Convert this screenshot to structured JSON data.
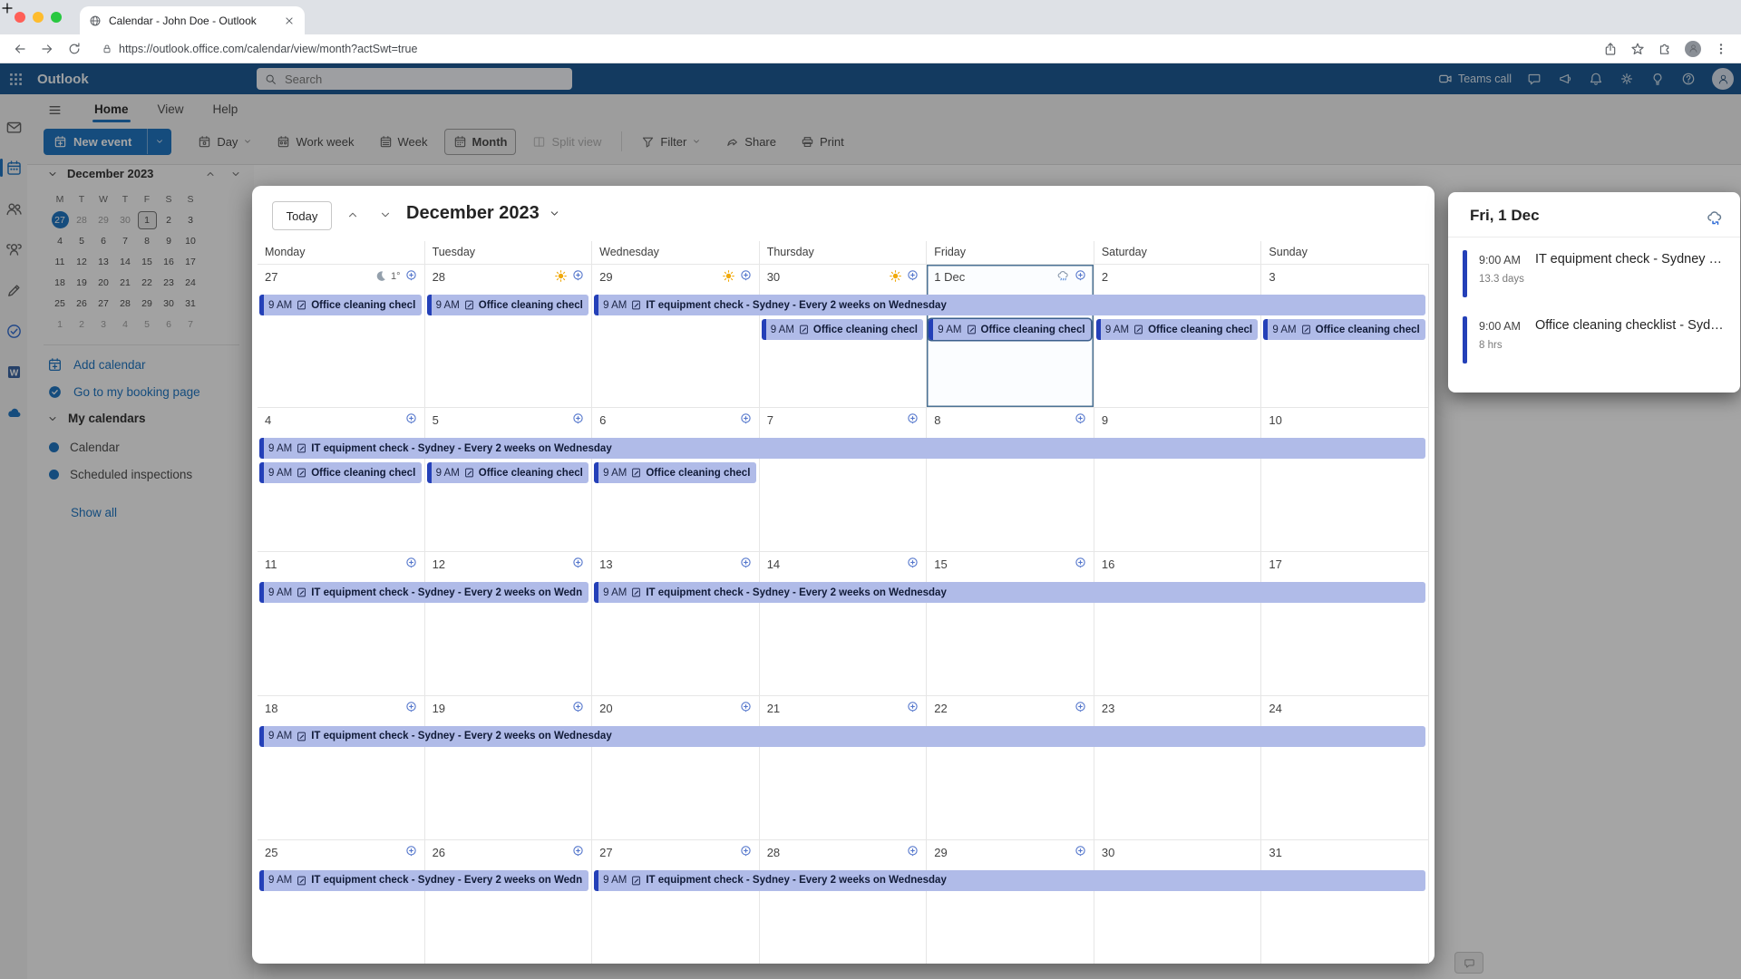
{
  "browser": {
    "tab_title": "Calendar - John Doe - Outlook",
    "url": "https://outlook.office.com/calendar/view/month?actSwt=true",
    "traffic_lights": [
      "#ff5f57",
      "#febc2e",
      "#28c840"
    ]
  },
  "suite_header": {
    "app_name": "Outlook",
    "search_placeholder": "Search",
    "teams_call_label": "Teams call",
    "right_icons": [
      "chat",
      "megaphone",
      "bell",
      "gear",
      "lightbulb",
      "question"
    ]
  },
  "app_rail": {
    "items": [
      {
        "icon": "mail",
        "color": "#5a5a5a",
        "active": false
      },
      {
        "icon": "calendar",
        "color": "#0f6cbd",
        "active": true
      },
      {
        "icon": "people",
        "color": "#5a5a5a",
        "active": false
      },
      {
        "icon": "groups",
        "color": "#5a5a5a",
        "active": false
      },
      {
        "icon": "pen",
        "color": "#5a5a5a",
        "active": false
      },
      {
        "icon": "todo",
        "color": "#2564cf",
        "active": false
      },
      {
        "icon": "word",
        "color": "#2b579a",
        "active": false
      },
      {
        "icon": "onedrive",
        "color": "#0f6cbd",
        "active": false
      }
    ]
  },
  "ribbon": {
    "tabs": [
      {
        "label": "Home",
        "active": true
      },
      {
        "label": "View",
        "active": false
      },
      {
        "label": "Help",
        "active": false
      }
    ],
    "toolbar": [
      {
        "label": "New event",
        "icon": "cal-plus",
        "type": "primary",
        "dropdown": true
      },
      {
        "label": "Day",
        "icon": "cal-day",
        "dropdown": true
      },
      {
        "label": "Work week",
        "icon": "cal-work"
      },
      {
        "label": "Week",
        "icon": "cal-week"
      },
      {
        "label": "Month",
        "icon": "cal-month",
        "selected": true
      },
      {
        "label": "Split view",
        "icon": "split",
        "disabled": true
      },
      {
        "label": "Filter",
        "icon": "funnel",
        "dropdown": true,
        "sep_before": true
      },
      {
        "label": "Share",
        "icon": "share2"
      },
      {
        "label": "Print",
        "icon": "printer"
      }
    ]
  },
  "sidebar": {
    "mini_calendar": {
      "title": "December 2023",
      "day_headers": [
        "M",
        "T",
        "W",
        "T",
        "F",
        "S",
        "S"
      ],
      "weeks": [
        [
          {
            "d": "27",
            "muted": true,
            "today": true
          },
          {
            "d": "28",
            "muted": true
          },
          {
            "d": "29",
            "muted": true
          },
          {
            "d": "30",
            "muted": true
          },
          {
            "d": "1",
            "selected": true
          },
          {
            "d": "2"
          },
          {
            "d": "3"
          }
        ],
        [
          {
            "d": "4"
          },
          {
            "d": "5"
          },
          {
            "d": "6"
          },
          {
            "d": "7"
          },
          {
            "d": "8"
          },
          {
            "d": "9"
          },
          {
            "d": "10"
          }
        ],
        [
          {
            "d": "11"
          },
          {
            "d": "12"
          },
          {
            "d": "13"
          },
          {
            "d": "14"
          },
          {
            "d": "15"
          },
          {
            "d": "16"
          },
          {
            "d": "17"
          }
        ],
        [
          {
            "d": "18"
          },
          {
            "d": "19"
          },
          {
            "d": "20"
          },
          {
            "d": "21"
          },
          {
            "d": "22"
          },
          {
            "d": "23"
          },
          {
            "d": "24"
          }
        ],
        [
          {
            "d": "25"
          },
          {
            "d": "26"
          },
          {
            "d": "27"
          },
          {
            "d": "28"
          },
          {
            "d": "29"
          },
          {
            "d": "30"
          },
          {
            "d": "31"
          }
        ],
        [
          {
            "d": "1",
            "muted": true
          },
          {
            "d": "2",
            "muted": true
          },
          {
            "d": "3",
            "muted": true
          },
          {
            "d": "4",
            "muted": true
          },
          {
            "d": "5",
            "muted": true
          },
          {
            "d": "6",
            "muted": true
          },
          {
            "d": "7",
            "muted": true
          }
        ]
      ]
    },
    "links": [
      {
        "label": "Add calendar",
        "icon": "cal-add"
      },
      {
        "label": "Go to my booking page",
        "icon": "booking"
      }
    ],
    "my_calendars_label": "My calendars",
    "calendars": [
      {
        "label": "Calendar"
      },
      {
        "label": "Scheduled inspections"
      }
    ],
    "show_all_label": "Show all"
  },
  "month_view": {
    "today_label": "Today",
    "title": "December 2023",
    "day_headers": [
      "Monday",
      "Tuesday",
      "Wednesday",
      "Thursday",
      "Friday",
      "Saturday",
      "Sunday"
    ],
    "weeks": [
      {
        "days": [
          {
            "label": "27",
            "weather": "moon",
            "temp": "1°",
            "pin": true
          },
          {
            "label": "28",
            "weather": "sun",
            "pin": true
          },
          {
            "label": "29",
            "weather": "sun",
            "pin": true
          },
          {
            "label": "30",
            "weather": "sun",
            "pin": true
          },
          {
            "label": "1 Dec",
            "weather": "rain",
            "pin": true,
            "selected": true
          },
          {
            "label": "2"
          },
          {
            "label": "3"
          }
        ],
        "events": [
          {
            "col": 0,
            "span": 1,
            "line": 0,
            "time": "9 AM",
            "title": "Office cleaning checl"
          },
          {
            "col": 1,
            "span": 1,
            "line": 0,
            "time": "9 AM",
            "title": "Office cleaning checl"
          },
          {
            "col": 2,
            "span": 5,
            "line": 0,
            "time": "9 AM",
            "title": "IT equipment check - Sydney - Every 2 weeks on Wednesday"
          },
          {
            "col": 3,
            "span": 1,
            "line": 1,
            "time": "9 AM",
            "title": "Office cleaning checl"
          },
          {
            "col": 4,
            "span": 1,
            "line": 1,
            "time": "9 AM",
            "title": "Office cleaning checl",
            "selected": true
          },
          {
            "col": 5,
            "span": 1,
            "line": 1,
            "time": "9 AM",
            "title": "Office cleaning checl"
          },
          {
            "col": 6,
            "span": 1,
            "line": 1,
            "time": "9 AM",
            "title": "Office cleaning checl"
          }
        ]
      },
      {
        "days": [
          {
            "label": "4",
            "pin": true
          },
          {
            "label": "5",
            "pin": true
          },
          {
            "label": "6",
            "pin": true
          },
          {
            "label": "7",
            "pin": true
          },
          {
            "label": "8",
            "pin": true
          },
          {
            "label": "9"
          },
          {
            "label": "10"
          }
        ],
        "events": [
          {
            "col": 0,
            "span": 7,
            "line": 0,
            "time": "9 AM",
            "title": "IT equipment check - Sydney - Every 2 weeks on Wednesday"
          },
          {
            "col": 0,
            "span": 1,
            "line": 1,
            "time": "9 AM",
            "title": "Office cleaning checl"
          },
          {
            "col": 1,
            "span": 1,
            "line": 1,
            "time": "9 AM",
            "title": "Office cleaning checl"
          },
          {
            "col": 2,
            "span": 1,
            "line": 1,
            "time": "9 AM",
            "title": "Office cleaning checl"
          }
        ]
      },
      {
        "days": [
          {
            "label": "11",
            "pin": true
          },
          {
            "label": "12",
            "pin": true
          },
          {
            "label": "13",
            "pin": true
          },
          {
            "label": "14",
            "pin": true
          },
          {
            "label": "15",
            "pin": true
          },
          {
            "label": "16"
          },
          {
            "label": "17"
          }
        ],
        "events": [
          {
            "col": 0,
            "span": 2,
            "line": 0,
            "time": "9 AM",
            "title": "IT equipment check - Sydney - Every 2 weeks on Wedn"
          },
          {
            "col": 2,
            "span": 5,
            "line": 0,
            "time": "9 AM",
            "title": "IT equipment check - Sydney - Every 2 weeks on Wednesday"
          }
        ]
      },
      {
        "days": [
          {
            "label": "18",
            "pin": true
          },
          {
            "label": "19",
            "pin": true
          },
          {
            "label": "20",
            "pin": true
          },
          {
            "label": "21",
            "pin": true
          },
          {
            "label": "22",
            "pin": true
          },
          {
            "label": "23"
          },
          {
            "label": "24"
          }
        ],
        "events": [
          {
            "col": 0,
            "span": 7,
            "line": 0,
            "time": "9 AM",
            "title": "IT equipment check - Sydney - Every 2 weeks on Wednesday"
          }
        ]
      },
      {
        "days": [
          {
            "label": "25",
            "pin": true
          },
          {
            "label": "26",
            "pin": true
          },
          {
            "label": "27",
            "pin": true
          },
          {
            "label": "28",
            "pin": true
          },
          {
            "label": "29",
            "pin": true
          },
          {
            "label": "30"
          },
          {
            "label": "31"
          }
        ],
        "events": [
          {
            "col": 0,
            "span": 2,
            "line": 0,
            "time": "9 AM",
            "title": "IT equipment check - Sydney - Every 2 weeks on Wedn"
          },
          {
            "col": 2,
            "span": 5,
            "line": 0,
            "time": "9 AM",
            "title": "IT equipment check - Sydney - Every 2 weeks on Wednesday"
          }
        ]
      }
    ]
  },
  "agenda_panel": {
    "title": "Fri, 1 Dec",
    "items": [
      {
        "time": "9:00 AM",
        "duration": "13.3 days",
        "title": "IT equipment check - Sydney …"
      },
      {
        "time": "9:00 AM",
        "duration": "8 hrs",
        "title": "Office cleaning checklist - Syd…"
      }
    ]
  },
  "colors": {
    "accent": "#0f6cbd",
    "suite_header": "#0c4e8c",
    "event_fill": "#b0bbe8",
    "event_stripe": "#2440b8",
    "overlay": "rgba(30,30,30,0.40)"
  }
}
